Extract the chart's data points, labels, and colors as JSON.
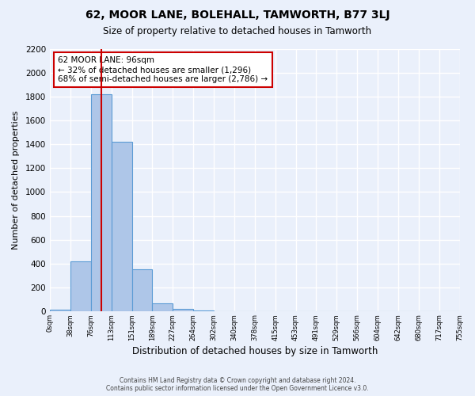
{
  "title": "62, MOOR LANE, BOLEHALL, TAMWORTH, B77 3LJ",
  "subtitle": "Size of property relative to detached houses in Tamworth",
  "xlabel": "Distribution of detached houses by size in Tamworth",
  "ylabel": "Number of detached properties",
  "bar_color": "#aec6e8",
  "bar_edge_color": "#5b9bd5",
  "background_color": "#eaf0fb",
  "grid_color": "#ffffff",
  "bin_labels": [
    "0sqm",
    "38sqm",
    "76sqm",
    "113sqm",
    "151sqm",
    "189sqm",
    "227sqm",
    "264sqm",
    "302sqm",
    "340sqm",
    "378sqm",
    "415sqm",
    "453sqm",
    "491sqm",
    "529sqm",
    "566sqm",
    "604sqm",
    "642sqm",
    "680sqm",
    "717sqm",
    "755sqm"
  ],
  "bar_heights": [
    15,
    420,
    1820,
    1420,
    350,
    70,
    25,
    10,
    0,
    0,
    0,
    0,
    0,
    0,
    0,
    0,
    0,
    0,
    0,
    0
  ],
  "red_line_x": 2.5,
  "annotation_title": "62 MOOR LANE: 96sqm",
  "annotation_line1": "← 32% of detached houses are smaller (1,296)",
  "annotation_line2": "68% of semi-detached houses are larger (2,786) →",
  "annotation_box_color": "#ffffff",
  "annotation_border_color": "#cc0000",
  "red_line_color": "#cc0000",
  "ylim": [
    0,
    2200
  ],
  "yticks": [
    0,
    200,
    400,
    600,
    800,
    1000,
    1200,
    1400,
    1600,
    1800,
    2000,
    2200
  ],
  "footer_line1": "Contains HM Land Registry data © Crown copyright and database right 2024.",
  "footer_line2": "Contains public sector information licensed under the Open Government Licence v3.0."
}
